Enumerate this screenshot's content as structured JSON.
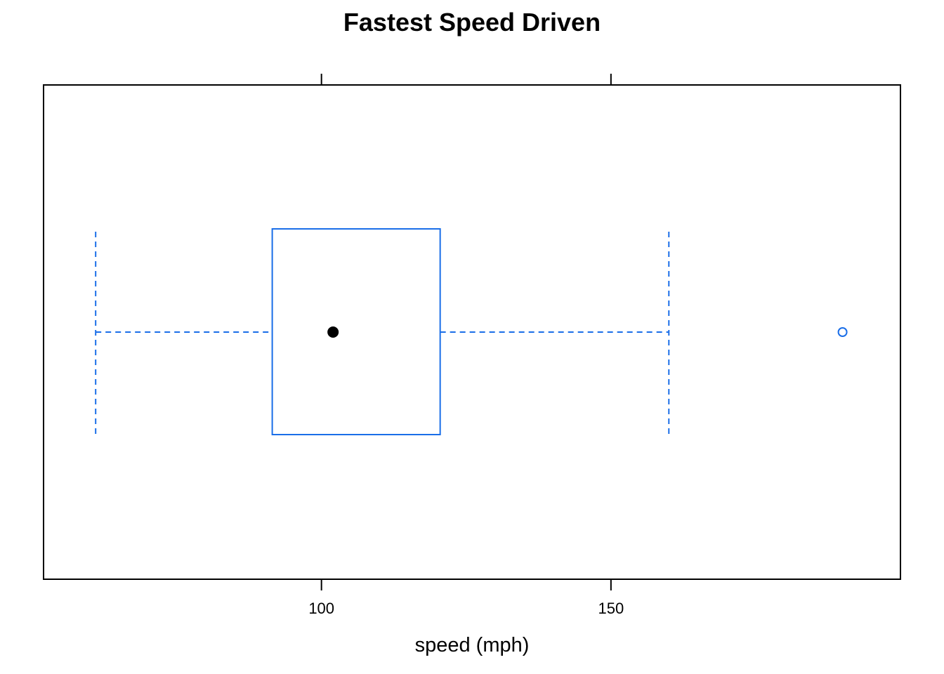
{
  "chart_data": {
    "type": "boxplot",
    "title": "Fastest Speed Driven",
    "xlabel": "speed (mph)",
    "ylabel": "",
    "xlim": [
      52,
      200
    ],
    "xticks": [
      100,
      150
    ],
    "xtick_labels": [
      "100",
      "150"
    ],
    "grid": false,
    "legend": "none",
    "box": {
      "whisker_low": 61,
      "q1": 91.5,
      "median": 102,
      "q3": 120.5,
      "whisker_high": 160,
      "outliers": [
        190
      ]
    },
    "colors": {
      "box": "#1a6ee8",
      "median": "#000000",
      "frame": "#000000"
    }
  }
}
